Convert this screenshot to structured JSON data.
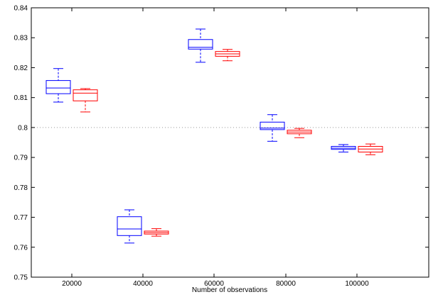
{
  "chart_data": {
    "type": "boxplot",
    "title": "",
    "xlabel": "Number of observations",
    "ylabel": "",
    "categories": [
      "20000",
      "40000",
      "60000",
      "80000",
      "100000"
    ],
    "ylim": [
      0.75,
      0.84
    ],
    "yticks": [
      "0.75",
      "0.76",
      "0.77",
      "0.78",
      "0.79",
      "0.8",
      "0.81",
      "0.82",
      "0.83",
      "0.84"
    ],
    "reference_line": {
      "y": 0.8,
      "style": "dotted",
      "color": "#999999"
    },
    "grid": false,
    "legend": "none",
    "series": [
      {
        "color": "#0000ff",
        "boxes": [
          {
            "min": 0.8085,
            "q1": 0.8113,
            "median": 0.8132,
            "q3": 0.8157,
            "max": 0.8197
          },
          {
            "min": 0.7614,
            "q1": 0.7639,
            "median": 0.7661,
            "q3": 0.7702,
            "max": 0.7725
          },
          {
            "min": 0.8218,
            "q1": 0.8262,
            "median": 0.8268,
            "q3": 0.8294,
            "max": 0.8329
          },
          {
            "min": 0.7954,
            "q1": 0.7993,
            "median": 0.7998,
            "q3": 0.8018,
            "max": 0.8043
          },
          {
            "min": 0.7918,
            "q1": 0.7927,
            "median": 0.7931,
            "q3": 0.7937,
            "max": 0.7943
          }
        ]
      },
      {
        "color": "#ff0000",
        "boxes": [
          {
            "min": 0.8052,
            "q1": 0.8089,
            "median": 0.8115,
            "q3": 0.8126,
            "max": 0.813
          },
          {
            "min": 0.7637,
            "q1": 0.7644,
            "median": 0.7649,
            "q3": 0.7654,
            "max": 0.7662
          },
          {
            "min": 0.8223,
            "q1": 0.8238,
            "median": 0.8246,
            "q3": 0.8254,
            "max": 0.8261
          },
          {
            "min": 0.7966,
            "q1": 0.7979,
            "median": 0.7985,
            "q3": 0.7991,
            "max": 0.7997
          },
          {
            "min": 0.7909,
            "q1": 0.7918,
            "median": 0.7928,
            "q3": 0.7937,
            "max": 0.7945
          }
        ]
      }
    ]
  }
}
